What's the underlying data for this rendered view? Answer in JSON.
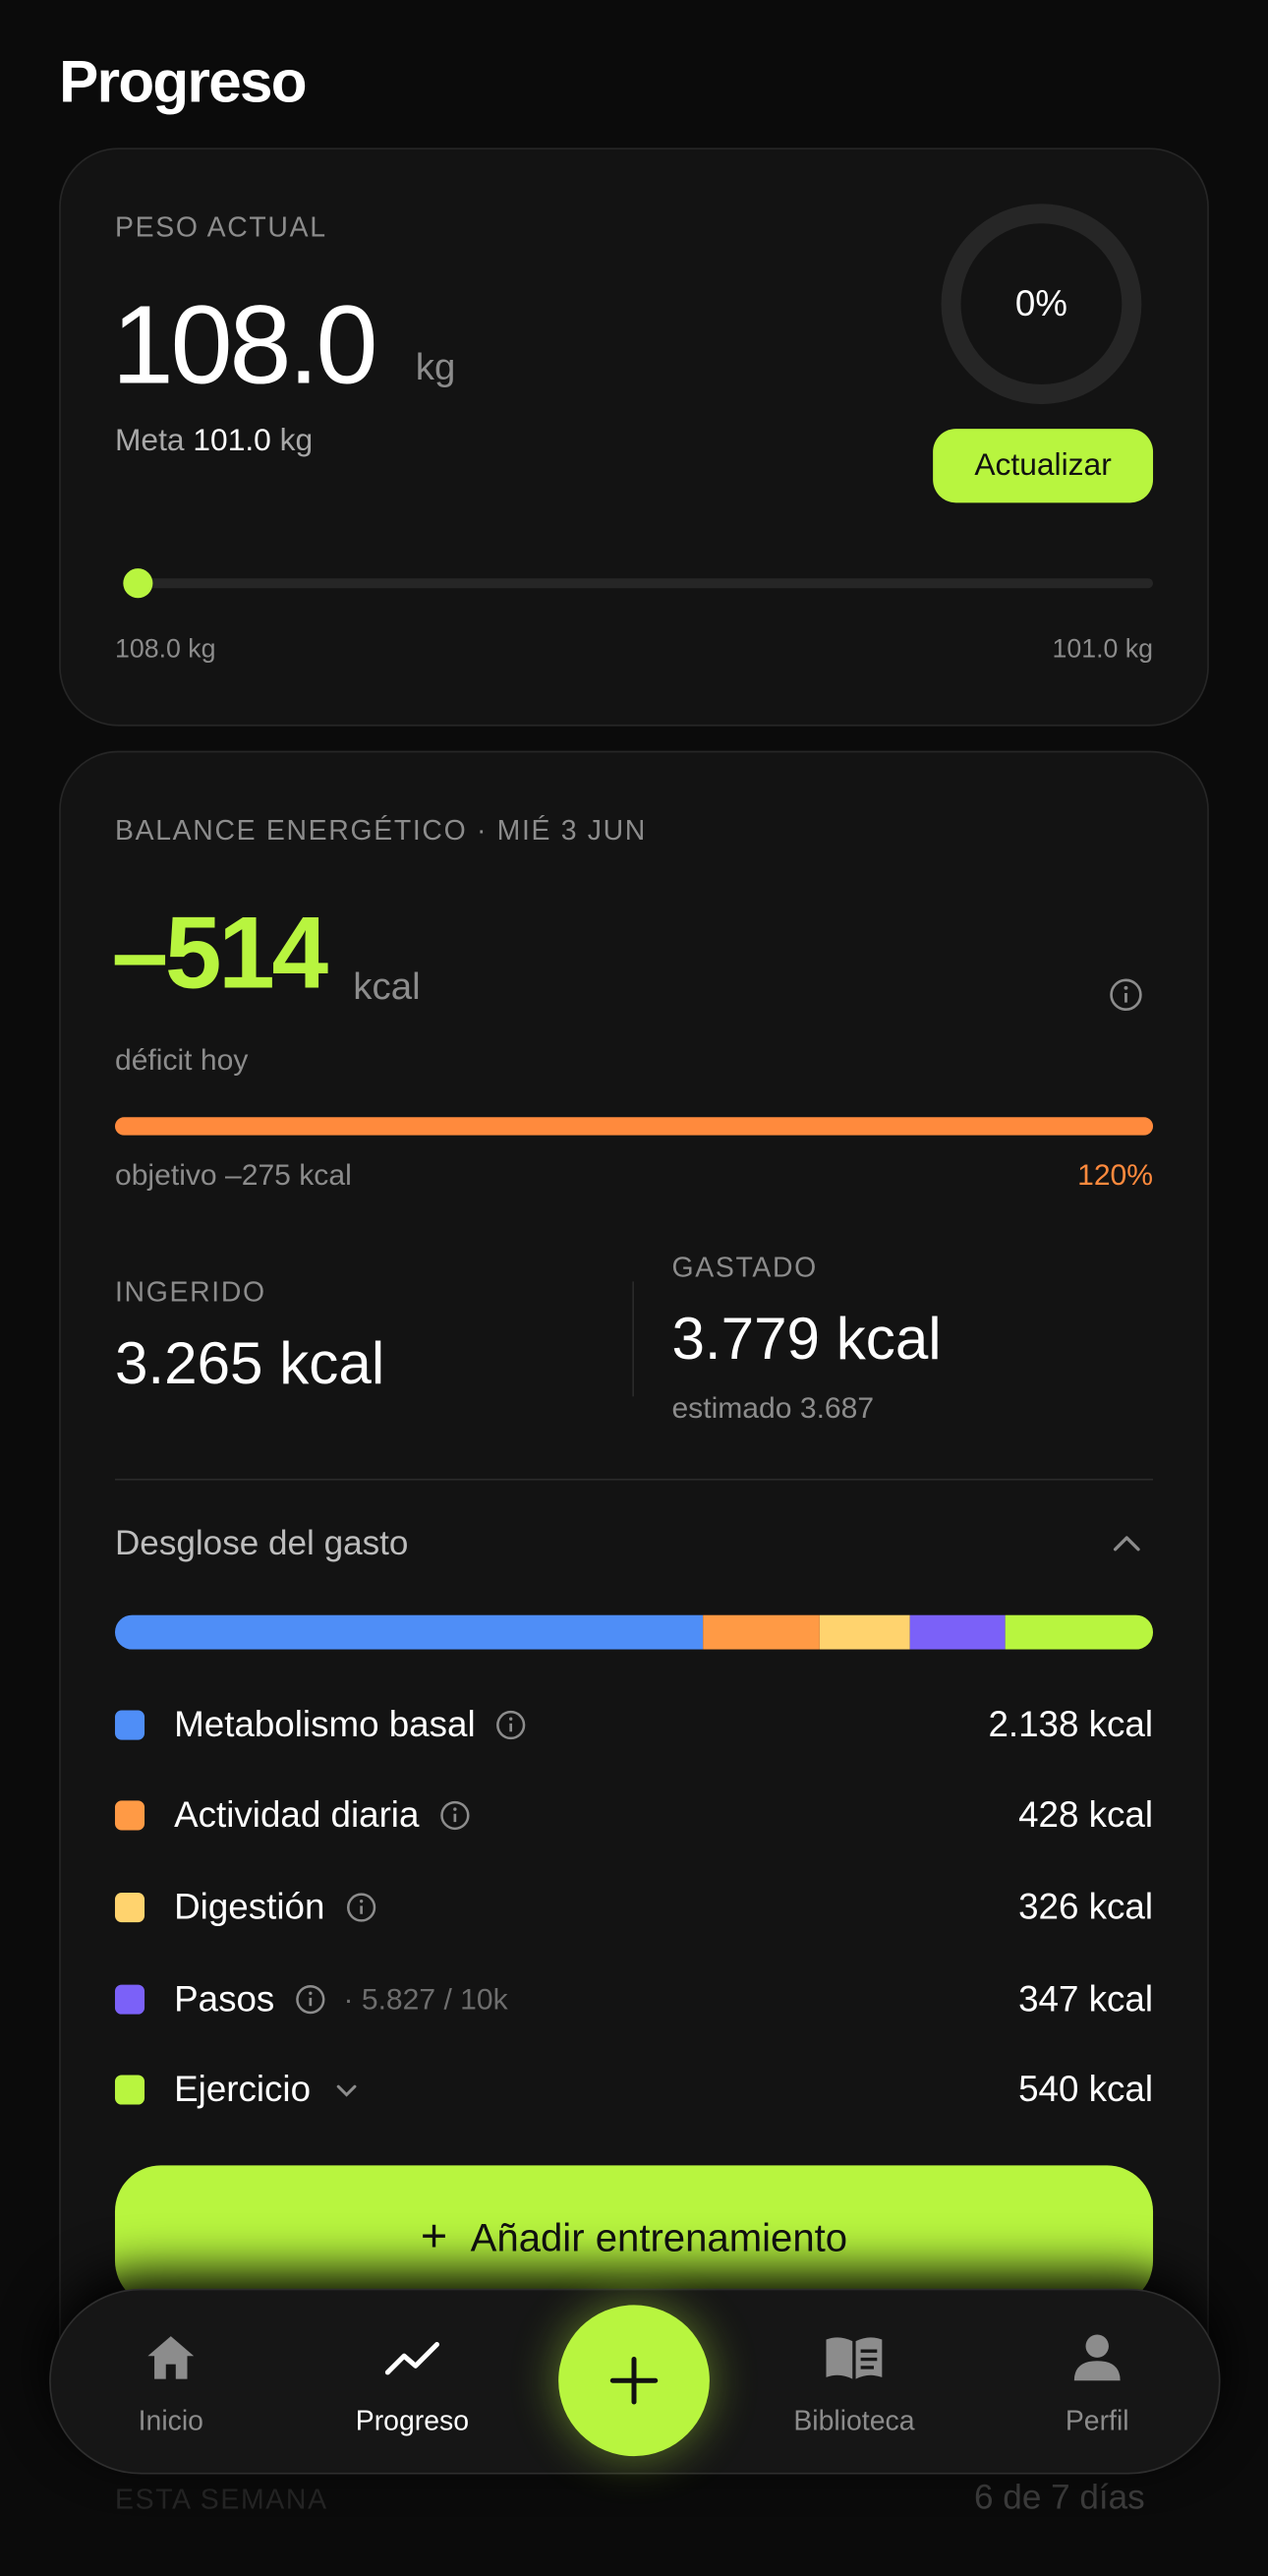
{
  "header": {
    "title": "Progreso"
  },
  "weight_card": {
    "label": "PESO ACTUAL",
    "value": "108.0",
    "unit": "kg",
    "goal_prefix": "Meta",
    "goal_value": "101.0",
    "goal_unit": "kg",
    "progress": "0%",
    "button": "Actualizar",
    "start": "108.0 kg",
    "end": "101.0 kg"
  },
  "energy_card": {
    "label": "BALANCE ENERGÉTICO · MIÉ 3 JUN",
    "value": "–514",
    "unit": "kcal",
    "caption": "déficit hoy",
    "target": "objetivo –275 kcal",
    "target_percent": "120%",
    "intake": {
      "label": "INGERIDO",
      "value": "3.265 kcal"
    },
    "spent": {
      "label": "GASTADO",
      "value": "3.779 kcal",
      "estimate": "estimado 3.687"
    },
    "breakdown_title": "Desglose del gasto",
    "breakdown": [
      {
        "name": "Metabolismo basal",
        "color": "#4f8ef7",
        "kcal": 2138,
        "label": "2.138 kcal",
        "icon": "info"
      },
      {
        "name": "Actividad diaria",
        "color": "#ff9a45",
        "kcal": 428,
        "label": "428 kcal",
        "icon": "info"
      },
      {
        "name": "Digestión",
        "color": "#ffd36e",
        "kcal": 326,
        "label": "326 kcal",
        "icon": "info"
      },
      {
        "name": "Pasos",
        "color": "#7b61f8",
        "kcal": 347,
        "label": "347 kcal",
        "icon": "info",
        "detail": "· 5.827 / 10k"
      },
      {
        "name": "Ejercicio",
        "color": "#b8f53f",
        "kcal": 540,
        "label": "540 kcal",
        "icon": "chevron"
      }
    ],
    "button": "Añadir entrenamiento"
  },
  "weekly": {
    "label": "ESTA SEMANA",
    "value": "6 de 7 días"
  },
  "nav": {
    "items": [
      "Inicio",
      "Progreso",
      "Biblioteca",
      "Perfil"
    ]
  }
}
